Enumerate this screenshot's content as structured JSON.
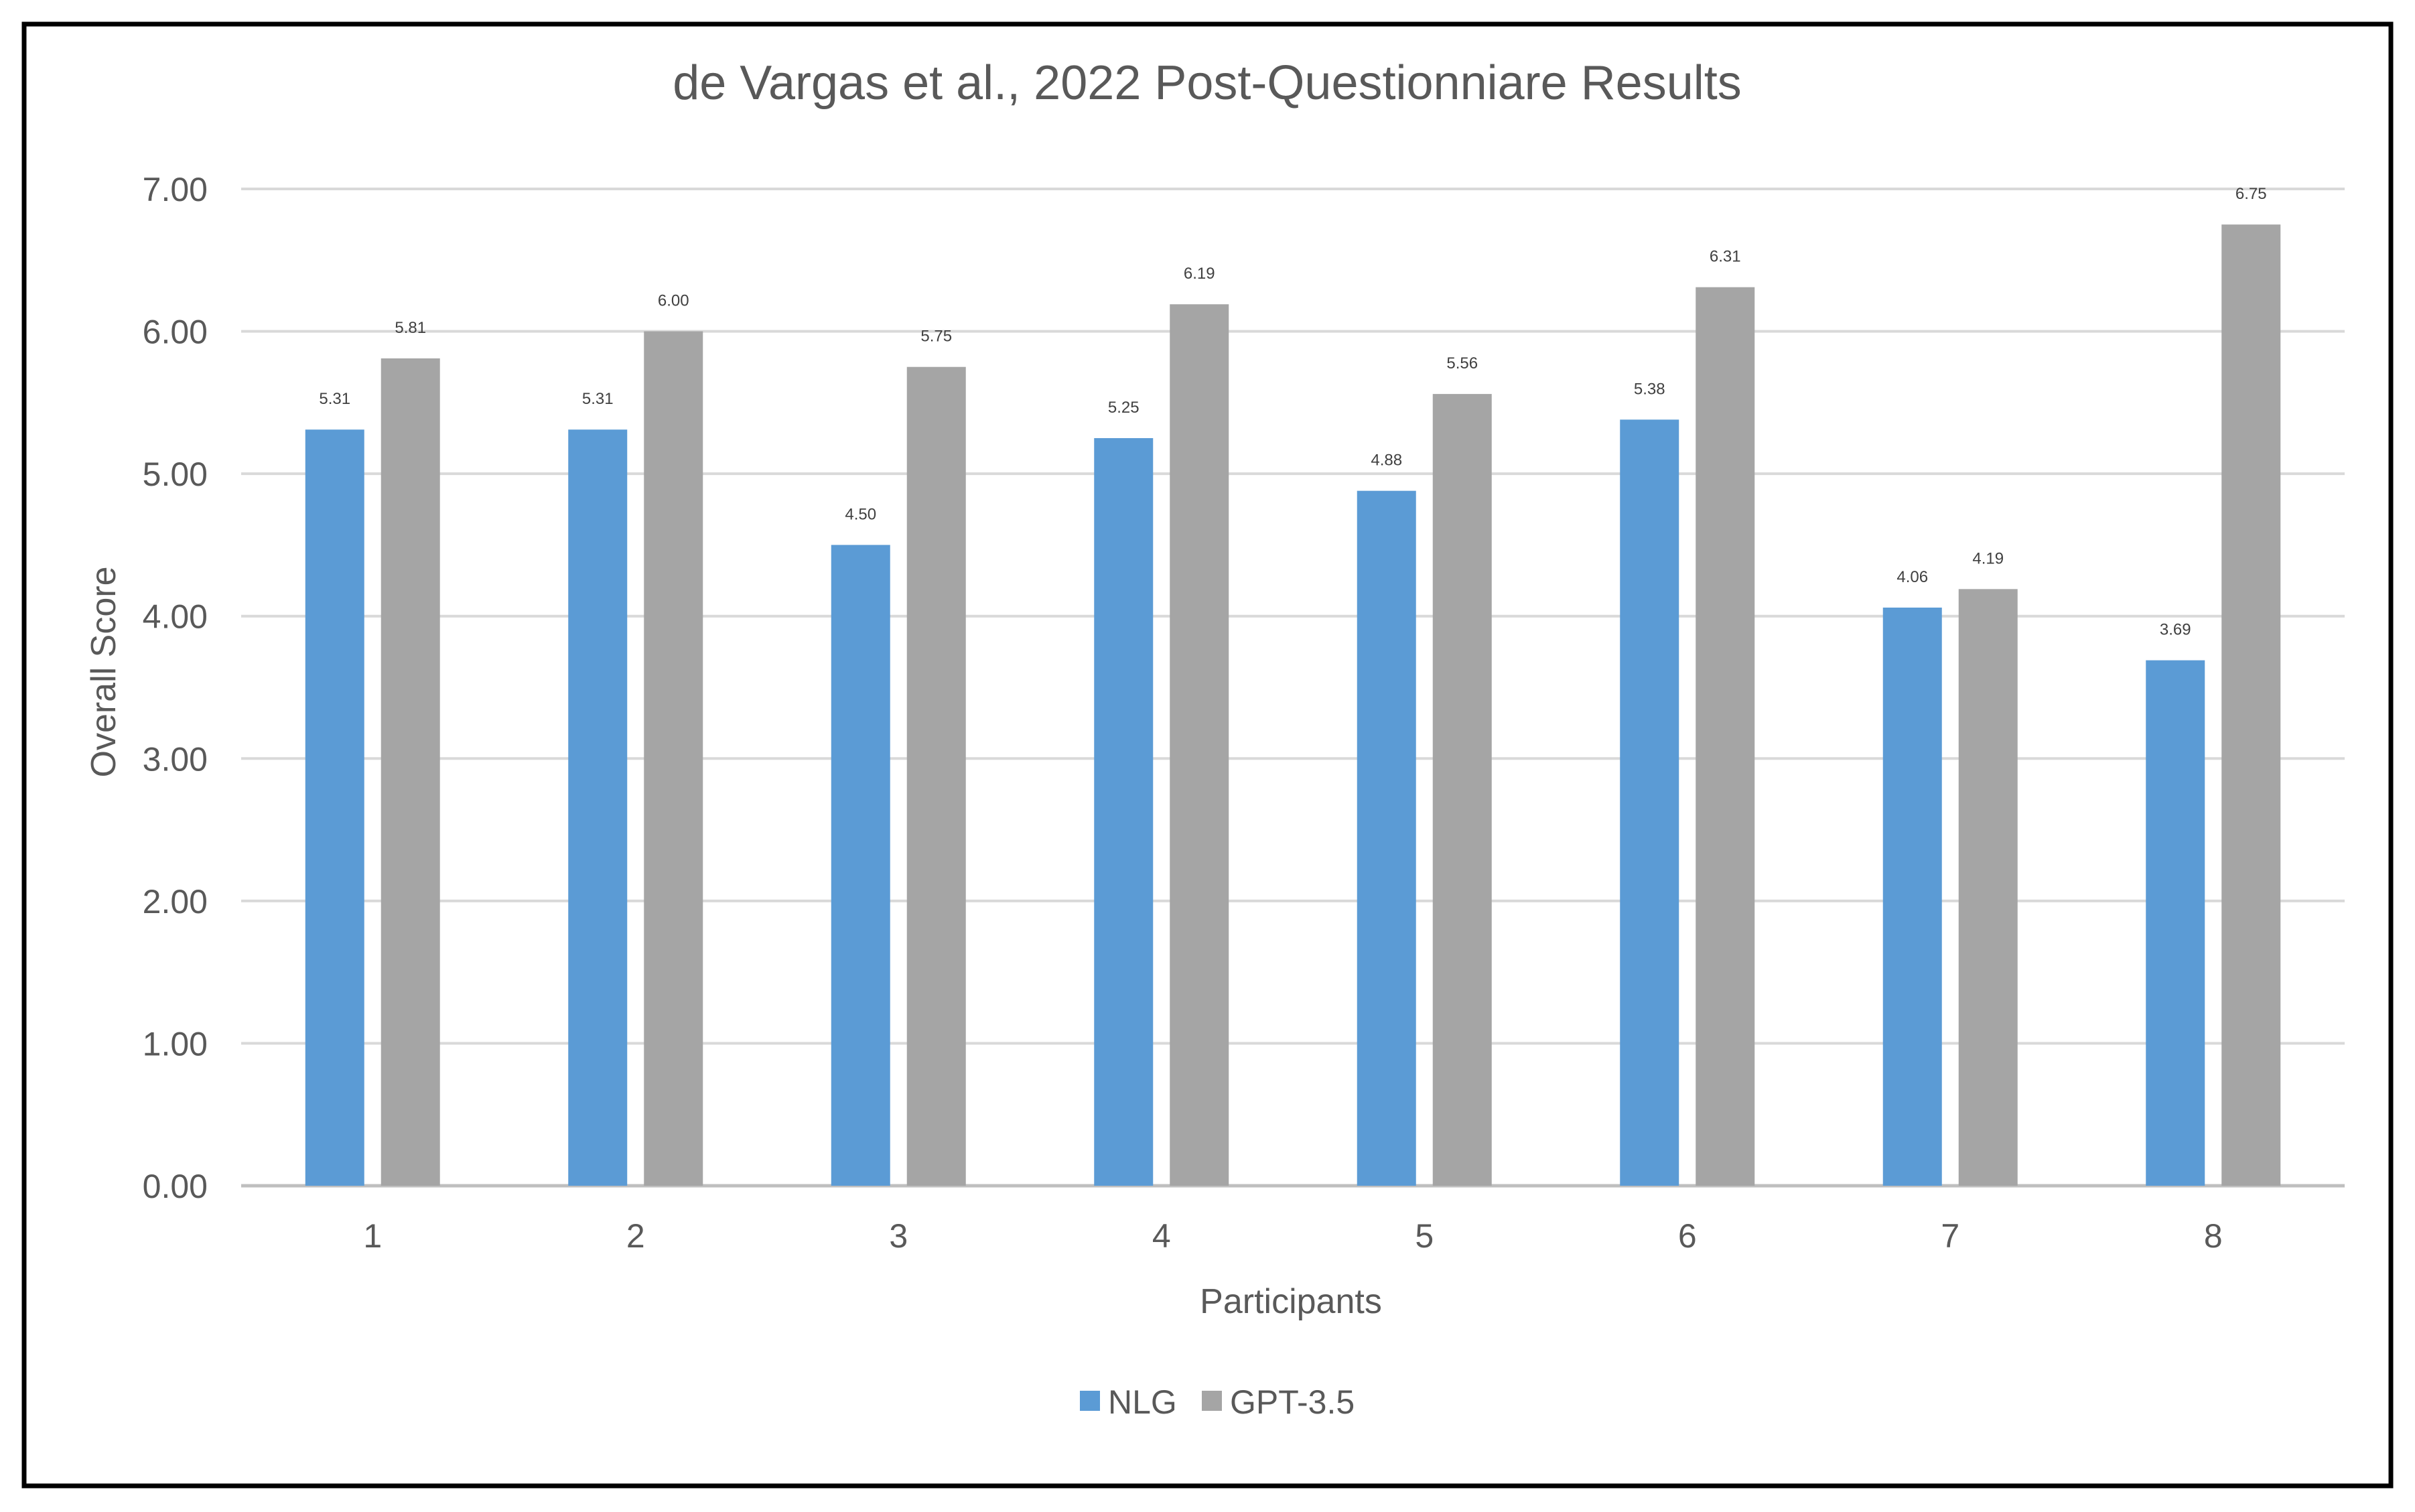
{
  "chart_data": {
    "type": "bar",
    "title": "de Vargas et al., 2022 Post-Questionniare Results",
    "xlabel": "Participants",
    "ylabel": "Overall Score",
    "categories": [
      "1",
      "2",
      "3",
      "4",
      "5",
      "6",
      "7",
      "8"
    ],
    "ylim": [
      0,
      7
    ],
    "yticks": [
      "0.00",
      "1.00",
      "2.00",
      "3.00",
      "4.00",
      "5.00",
      "6.00",
      "7.00"
    ],
    "grid": true,
    "legend_position": "bottom",
    "series": [
      {
        "name": "NLG",
        "color": "#5b9bd5",
        "values": [
          5.31,
          5.31,
          4.5,
          5.25,
          4.88,
          5.38,
          4.06,
          3.69
        ],
        "labels": [
          "5.31",
          "5.31",
          "4.50",
          "5.25",
          "4.88",
          "5.38",
          "4.06",
          "3.69"
        ]
      },
      {
        "name": "GPT-3.5",
        "color": "#a5a5a5",
        "values": [
          5.81,
          6.0,
          5.75,
          6.19,
          5.56,
          6.31,
          4.19,
          6.75
        ],
        "labels": [
          "5.81",
          "6.00",
          "5.75",
          "6.19",
          "5.56",
          "6.31",
          "4.19",
          "6.75"
        ]
      }
    ]
  }
}
